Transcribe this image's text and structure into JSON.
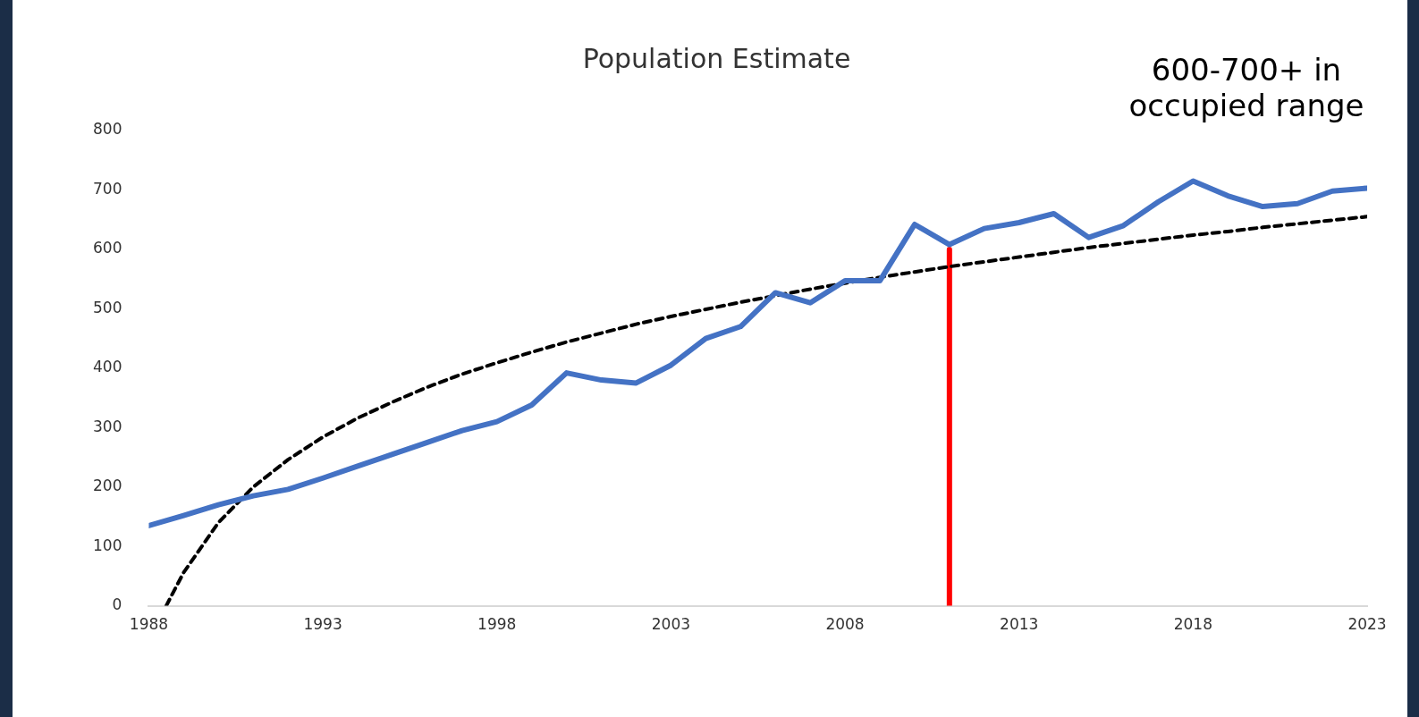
{
  "chart_data": {
    "type": "line",
    "title": "Population Estimate",
    "annotations": [
      "600-700+ in occupied range"
    ],
    "x": [
      1988,
      1989,
      1990,
      1991,
      1992,
      1993,
      1994,
      1995,
      1996,
      1997,
      1998,
      1999,
      2000,
      2001,
      2002,
      2003,
      2004,
      2005,
      2006,
      2007,
      2008,
      2009,
      2010,
      2011,
      2012,
      2013,
      2014,
      2015,
      2016,
      2017,
      2018,
      2019,
      2020,
      2021,
      2022,
      2023
    ],
    "series": [
      {
        "color": "#4472c4",
        "values": [
          135,
          152,
          170,
          185,
          196,
          215,
          235,
          255,
          275,
          295,
          310,
          338,
          392,
          380,
          375,
          405,
          450,
          470,
          527,
          510,
          547,
          547,
          642,
          608,
          635,
          645,
          660,
          620,
          640,
          680,
          715,
          690,
          672,
          677,
          698,
          703
        ]
      },
      {
        "type": "line",
        "color": "#000000",
        "line_style": "dashed",
        "x": [
          1988.5,
          1989,
          1990,
          1991,
          1992,
          1993,
          1994,
          1995,
          1996,
          1997,
          1998,
          1999,
          2000,
          2001,
          2002,
          2003,
          2004,
          2005,
          2006,
          2007,
          2008,
          2009,
          2010,
          2011,
          2012,
          2013,
          2014,
          2015,
          2016,
          2017,
          2018,
          2019,
          2020,
          2021,
          2022,
          2023
        ],
        "values": [
          0,
          56,
          140,
          200,
          246,
          284,
          316,
          343,
          368,
          390,
          409,
          427,
          444,
          459,
          474,
          487,
          499,
          511,
          522,
          533,
          543,
          553,
          562,
          571,
          579,
          587,
          595,
          603,
          610,
          617,
          624,
          630,
          637,
          643,
          649,
          655
        ]
      },
      {
        "type": "line",
        "color": "#ff0000",
        "x": [
          2011,
          2011
        ],
        "values": [
          0,
          600
        ]
      }
    ],
    "xlim": [
      1988,
      2023
    ],
    "xticks": [
      1988,
      1993,
      1998,
      2003,
      2008,
      2013,
      2018,
      2023
    ],
    "ylim": [
      0,
      800
    ],
    "yticks": [
      0,
      100,
      200,
      300,
      400,
      500,
      600,
      700,
      800
    ],
    "grid": false,
    "legend": false,
    "marker": "none"
  }
}
